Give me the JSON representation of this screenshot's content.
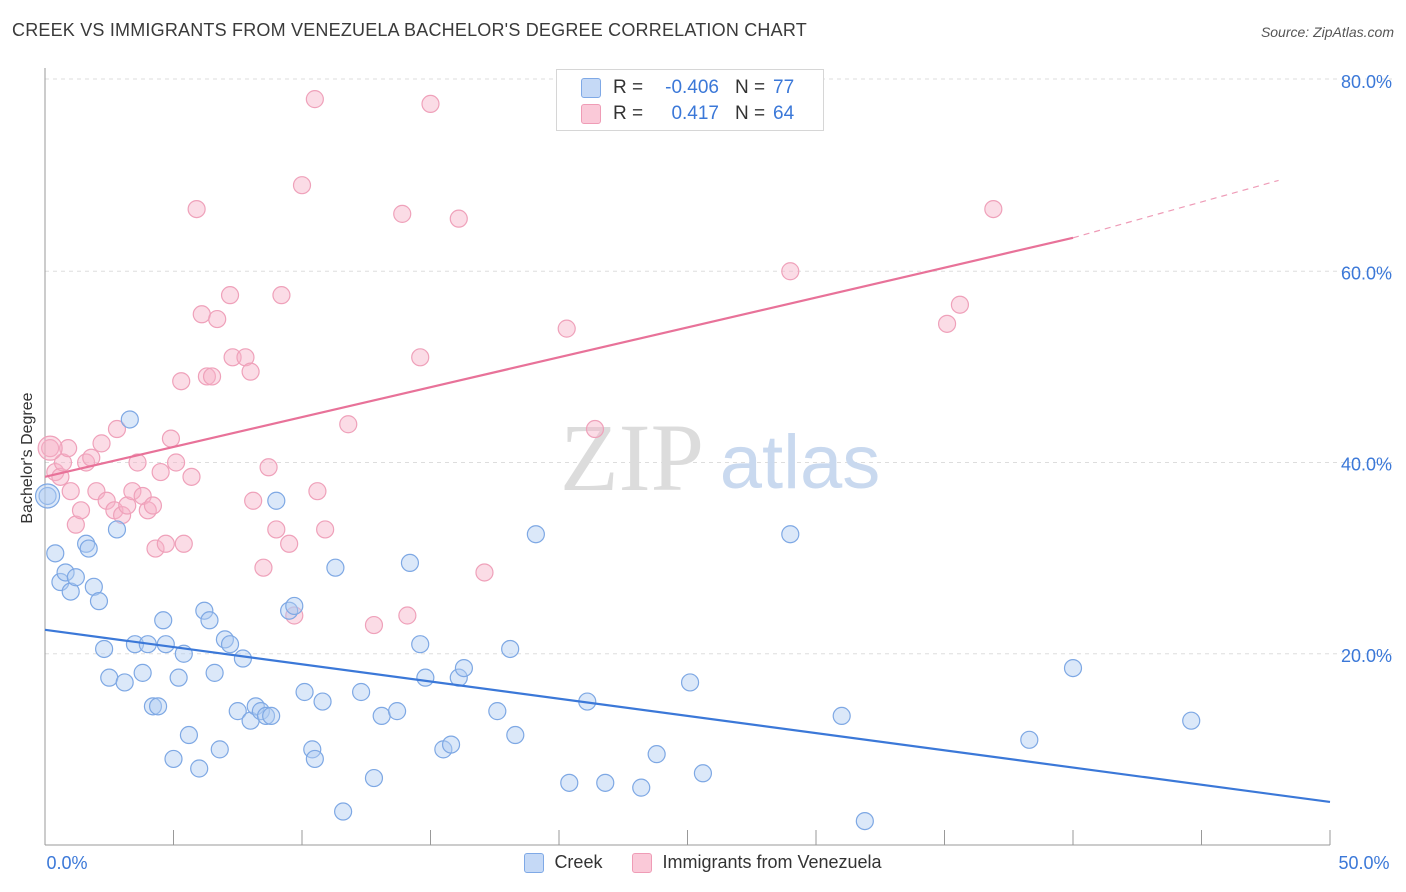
{
  "title": "CREEK VS IMMIGRANTS FROM VENEZUELA BACHELOR'S DEGREE CORRELATION CHART",
  "source": "Source: ZipAtlas.com",
  "watermark": {
    "zip": "ZIP",
    "atlas": "atlas"
  },
  "stats_box": {
    "rows": [
      {
        "r_label": "R =",
        "r_value": "-0.406",
        "n_label": "N =",
        "n_value": "77"
      },
      {
        "r_label": "R =",
        "r_value": "0.417",
        "n_label": "N =",
        "n_value": "64"
      }
    ]
  },
  "chart_data": {
    "type": "scatter",
    "title": "CREEK VS IMMIGRANTS FROM VENEZUELA BACHELOR'S DEGREE CORRELATION CHART",
    "xlabel": "",
    "ylabel": "Bachelor's Degree",
    "xlim": [
      0,
      50
    ],
    "ylim": [
      0,
      80
    ],
    "x_tick_labels": [
      "0.0%",
      "50.0%"
    ],
    "y_tick_labels": [
      "20.0%",
      "40.0%",
      "60.0%",
      "80.0%"
    ],
    "y_ticks": [
      20,
      40,
      60,
      80
    ],
    "grid": true,
    "legend": "bottom-center",
    "colors": {
      "creek": "#3b78d8",
      "venezuela": "#e87299"
    },
    "series": [
      {
        "name": "Creek",
        "R": -0.406,
        "N": 77,
        "trend": {
          "x": [
            0,
            50
          ],
          "y": [
            22.5,
            4.5
          ]
        },
        "points": [
          [
            0.1,
            36.5
          ],
          [
            0.4,
            30.5
          ],
          [
            0.6,
            27.5
          ],
          [
            0.8,
            28.5
          ],
          [
            1.0,
            26.5
          ],
          [
            1.2,
            28.0
          ],
          [
            1.6,
            31.5
          ],
          [
            1.7,
            31.0
          ],
          [
            1.9,
            27.0
          ],
          [
            2.1,
            25.5
          ],
          [
            2.3,
            20.5
          ],
          [
            2.5,
            17.5
          ],
          [
            2.8,
            33.0
          ],
          [
            3.1,
            17.0
          ],
          [
            3.3,
            44.5
          ],
          [
            3.5,
            21.0
          ],
          [
            3.8,
            18.0
          ],
          [
            4.0,
            21.0
          ],
          [
            4.2,
            14.5
          ],
          [
            4.4,
            14.5
          ],
          [
            4.6,
            23.5
          ],
          [
            4.7,
            21.0
          ],
          [
            5.0,
            9.0
          ],
          [
            5.2,
            17.5
          ],
          [
            5.4,
            20.0
          ],
          [
            5.6,
            11.5
          ],
          [
            6.0,
            8.0
          ],
          [
            6.2,
            24.5
          ],
          [
            6.4,
            23.5
          ],
          [
            6.6,
            18.0
          ],
          [
            6.8,
            10.0
          ],
          [
            7.0,
            21.5
          ],
          [
            7.2,
            21.0
          ],
          [
            7.5,
            14.0
          ],
          [
            7.7,
            19.5
          ],
          [
            8.0,
            13.0
          ],
          [
            8.2,
            14.5
          ],
          [
            8.4,
            14.0
          ],
          [
            8.6,
            13.5
          ],
          [
            8.8,
            13.5
          ],
          [
            9.0,
            36.0
          ],
          [
            9.5,
            24.5
          ],
          [
            9.7,
            25.0
          ],
          [
            10.1,
            16.0
          ],
          [
            10.4,
            10.0
          ],
          [
            10.5,
            9.0
          ],
          [
            10.8,
            15.0
          ],
          [
            11.3,
            29.0
          ],
          [
            11.6,
            3.5
          ],
          [
            12.3,
            16.0
          ],
          [
            12.8,
            7.0
          ],
          [
            13.1,
            13.5
          ],
          [
            13.7,
            14.0
          ],
          [
            14.2,
            29.5
          ],
          [
            14.6,
            21.0
          ],
          [
            14.8,
            17.5
          ],
          [
            15.5,
            10.0
          ],
          [
            15.8,
            10.5
          ],
          [
            16.1,
            17.5
          ],
          [
            16.3,
            18.5
          ],
          [
            17.6,
            14.0
          ],
          [
            18.1,
            20.5
          ],
          [
            18.3,
            11.5
          ],
          [
            19.1,
            32.5
          ],
          [
            20.4,
            6.5
          ],
          [
            21.1,
            15.0
          ],
          [
            21.8,
            6.5
          ],
          [
            23.2,
            6.0
          ],
          [
            23.8,
            9.5
          ],
          [
            25.1,
            17.0
          ],
          [
            25.6,
            7.5
          ],
          [
            29.0,
            32.5
          ],
          [
            31.0,
            13.5
          ],
          [
            31.9,
            2.5
          ],
          [
            38.3,
            11.0
          ],
          [
            40.0,
            18.5
          ],
          [
            44.6,
            13.0
          ]
        ]
      },
      {
        "name": "Immigrants from Venezuela",
        "R": 0.417,
        "N": 64,
        "trend": {
          "x": [
            0,
            40
          ],
          "y": [
            38.5,
            63.5
          ]
        },
        "trend_extension": {
          "x": [
            40,
            48
          ],
          "y": [
            63.5,
            69.5
          ]
        },
        "points": [
          [
            0.2,
            41.5
          ],
          [
            0.4,
            39.0
          ],
          [
            0.6,
            38.5
          ],
          [
            0.7,
            40.0
          ],
          [
            0.9,
            41.5
          ],
          [
            1.0,
            37.0
          ],
          [
            1.2,
            33.5
          ],
          [
            1.4,
            35.0
          ],
          [
            1.6,
            40.0
          ],
          [
            1.8,
            40.5
          ],
          [
            2.0,
            37.0
          ],
          [
            2.2,
            42.0
          ],
          [
            2.4,
            36.0
          ],
          [
            2.7,
            35.0
          ],
          [
            2.8,
            43.5
          ],
          [
            3.0,
            34.5
          ],
          [
            3.2,
            35.5
          ],
          [
            3.4,
            37.0
          ],
          [
            3.6,
            40.0
          ],
          [
            3.8,
            36.5
          ],
          [
            4.0,
            35.0
          ],
          [
            4.2,
            35.5
          ],
          [
            4.3,
            31.0
          ],
          [
            4.5,
            39.0
          ],
          [
            4.7,
            31.5
          ],
          [
            4.9,
            42.5
          ],
          [
            5.1,
            40.0
          ],
          [
            5.3,
            48.5
          ],
          [
            5.4,
            31.5
          ],
          [
            5.7,
            38.5
          ],
          [
            5.9,
            66.5
          ],
          [
            6.1,
            55.5
          ],
          [
            6.3,
            49.0
          ],
          [
            6.5,
            49.0
          ],
          [
            6.7,
            55.0
          ],
          [
            7.2,
            57.5
          ],
          [
            7.3,
            51.0
          ],
          [
            7.8,
            51.0
          ],
          [
            8.0,
            49.5
          ],
          [
            8.1,
            36.0
          ],
          [
            8.5,
            29.0
          ],
          [
            8.7,
            39.5
          ],
          [
            9.0,
            33.0
          ],
          [
            9.2,
            57.5
          ],
          [
            9.5,
            31.5
          ],
          [
            9.7,
            24.0
          ],
          [
            10.0,
            69.0
          ],
          [
            10.5,
            78.0
          ],
          [
            10.6,
            37.0
          ],
          [
            10.9,
            33.0
          ],
          [
            11.8,
            44.0
          ],
          [
            12.8,
            23.0
          ],
          [
            13.9,
            66.0
          ],
          [
            14.1,
            24.0
          ],
          [
            14.6,
            51.0
          ],
          [
            15.0,
            77.5
          ],
          [
            16.1,
            65.5
          ],
          [
            17.1,
            28.5
          ],
          [
            20.3,
            54.0
          ],
          [
            21.4,
            43.5
          ],
          [
            29.0,
            60.0
          ],
          [
            35.1,
            54.5
          ],
          [
            35.6,
            56.5
          ],
          [
            36.9,
            66.5
          ]
        ]
      }
    ]
  },
  "legend_items": [
    "Creek",
    "Immigrants from Venezuela"
  ]
}
